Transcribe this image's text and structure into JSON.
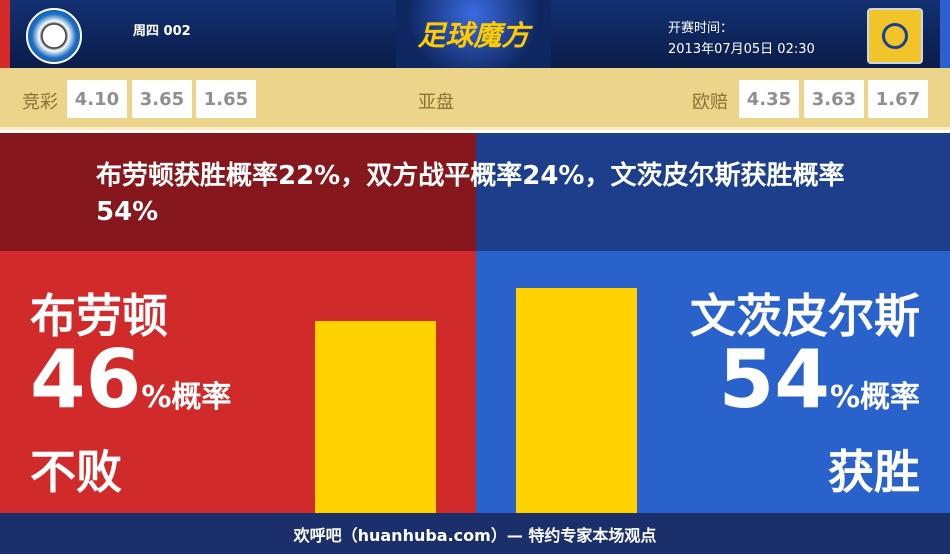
{
  "header": {
    "match_no": "周四 002",
    "brand": "足球魔方",
    "kickoff_label": "开赛时间：",
    "kickoff_time": "2013年07月05日 02:30"
  },
  "odds": {
    "jingcai_label": "竞彩",
    "jingcai": [
      "4.10",
      "3.65",
      "1.65"
    ],
    "asian_label": "亚盘",
    "euro_label": "欧赔",
    "euro": [
      "4.35",
      "3.63",
      "1.67"
    ]
  },
  "summary": "布劳顿获胜概率22%，双方战平概率24%，文茨皮尔斯获胜概率54%",
  "home": {
    "name": "布劳顿",
    "percent": "46",
    "percent_suffix": "%概率",
    "outcome": "不败",
    "value": 46,
    "color": "#d12a2a"
  },
  "away": {
    "name": "文茨皮尔斯",
    "percent": "54",
    "percent_suffix": "%概率",
    "outcome": "获胜",
    "value": 54,
    "color": "#2a62cc"
  },
  "bar_color": "#ffd200",
  "footer": "欢呼吧（huanhuba.com）— 特约专家本场观点"
}
